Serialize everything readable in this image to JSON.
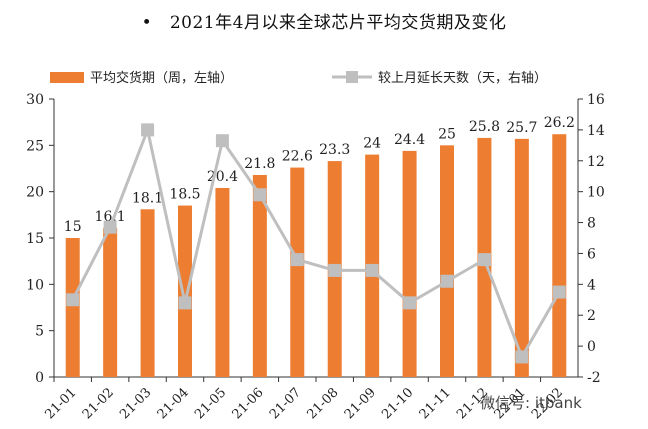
{
  "title": "2021年4月以来全球芯片平均交货期及变化",
  "title_bullet": "•",
  "watermark": "微信号: itbank",
  "colors": {
    "bar": "#ED7D31",
    "line": "#BFBFBF",
    "axis": "#333333"
  },
  "chart_data": {
    "type": "bar",
    "categories": [
      "21-01",
      "21-02",
      "21-03",
      "21-04",
      "21-05",
      "21-06",
      "21-07",
      "21-08",
      "21-09",
      "21-10",
      "21-11",
      "21-12",
      "22-01",
      "22-02"
    ],
    "series": [
      {
        "name": "平均交货期（周，左轴）",
        "type": "bar",
        "axis": "left",
        "values": [
          15,
          16.1,
          18.1,
          18.5,
          20.4,
          21.8,
          22.6,
          23.3,
          24,
          24.4,
          25,
          25.8,
          25.7,
          26.2
        ]
      },
      {
        "name": "较上月延长天数（天，右轴）",
        "type": "line",
        "axis": "right",
        "values": [
          3,
          7.7,
          14,
          2.8,
          13.3,
          9.8,
          5.6,
          4.9,
          4.9,
          2.8,
          4.2,
          5.6,
          -0.7,
          3.5
        ]
      }
    ],
    "ylim_left": [
      0,
      30
    ],
    "yticks_left": [
      0,
      5,
      10,
      15,
      20,
      25,
      30
    ],
    "ylim_right": [
      -2,
      16
    ],
    "yticks_right": [
      -2,
      0,
      2,
      4,
      6,
      8,
      10,
      12,
      14,
      16
    ],
    "legend": "top",
    "grid": false
  }
}
